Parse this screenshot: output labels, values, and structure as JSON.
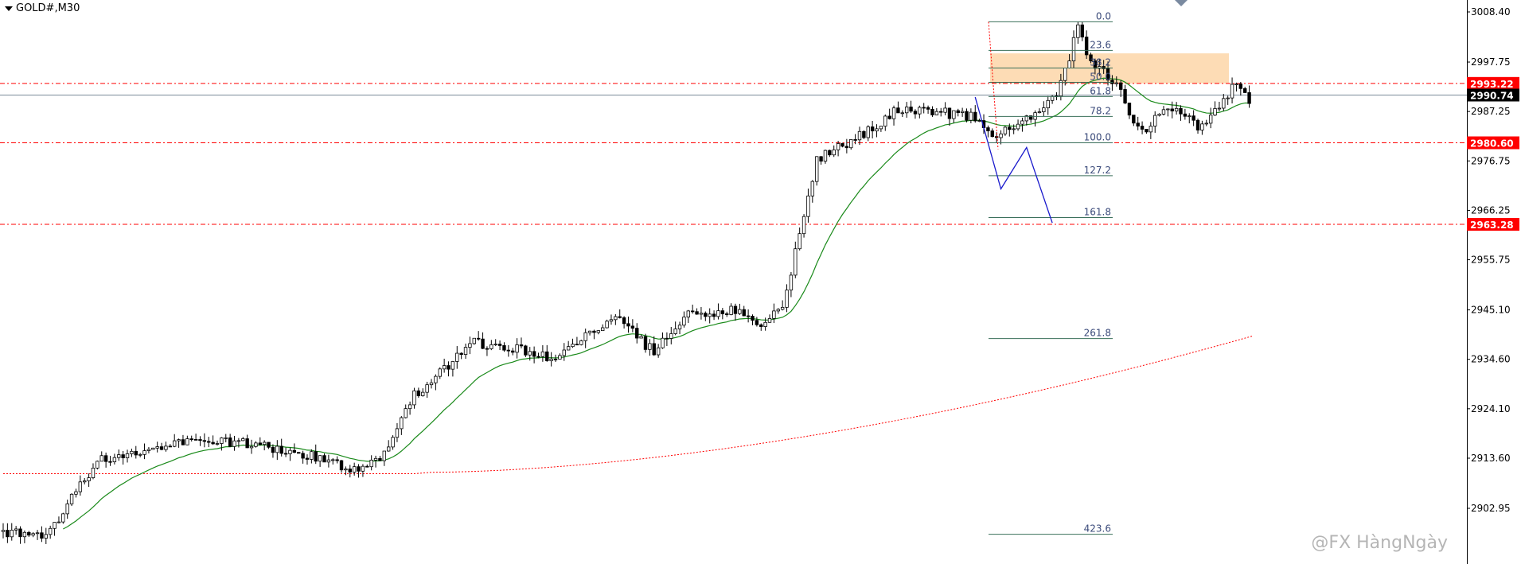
{
  "symbol": "GOLD#,M30",
  "watermark": "@FX HàngNgày",
  "colors": {
    "bull_candle": "#ffffff",
    "bear_candle": "#000000",
    "ma_fast": "#1a8a1a",
    "ma_slow": "#ff0000",
    "level_line": "#ff0000",
    "fib_line": "#3a6f5a",
    "fib_text": "#3a4a7a",
    "supply_zone": "#fddcb5",
    "projection": "#1a1acc",
    "bid_line": "#7a8a9a"
  },
  "price_axis": {
    "ticks": [
      "3008.40",
      "2997.75",
      "2987.25",
      "2976.75",
      "2966.25",
      "2955.75",
      "2945.10",
      "2934.60",
      "2924.10",
      "2913.60",
      "2902.95"
    ]
  },
  "price_labels": [
    {
      "text": "2993.22",
      "price": 2993.22,
      "bg": "#ff0000",
      "fg": "#ffffff"
    },
    {
      "text": "2990.74",
      "price": 2990.74,
      "bg": "#000000",
      "fg": "#ffffff"
    },
    {
      "text": "2980.60",
      "price": 2980.6,
      "bg": "#ff0000",
      "fg": "#ffffff"
    },
    {
      "text": "2963.28",
      "price": 2963.28,
      "bg": "#ff0000",
      "fg": "#ffffff"
    }
  ],
  "fibonacci": {
    "high": 3006.3,
    "low": 2980.6,
    "levels": [
      {
        "label": "0.0",
        "ratio": 0.0
      },
      {
        "label": "23.6",
        "ratio": 0.236
      },
      {
        "label": "38.2",
        "ratio": 0.382
      },
      {
        "label": "50.0",
        "ratio": 0.5
      },
      {
        "label": "61.8",
        "ratio": 0.618
      },
      {
        "label": "78.2",
        "ratio": 0.782
      },
      {
        "label": "100.0",
        "ratio": 1.0
      },
      {
        "label": "127.2",
        "ratio": 1.272
      },
      {
        "label": "161.8",
        "ratio": 1.618
      },
      {
        "label": "261.8",
        "ratio": 2.618
      },
      {
        "label": "423.6",
        "ratio": 4.236
      }
    ]
  },
  "supply_zone": {
    "top": 2999.6,
    "bottom": 2993.22
  },
  "projection": [
    {
      "bar": 227,
      "price": 2990.3
    },
    {
      "bar": 233,
      "price": 2970.8
    },
    {
      "bar": 239,
      "price": 2979.6
    },
    {
      "bar": 245,
      "price": 2963.6
    }
  ],
  "candle_seed": 20250430
}
